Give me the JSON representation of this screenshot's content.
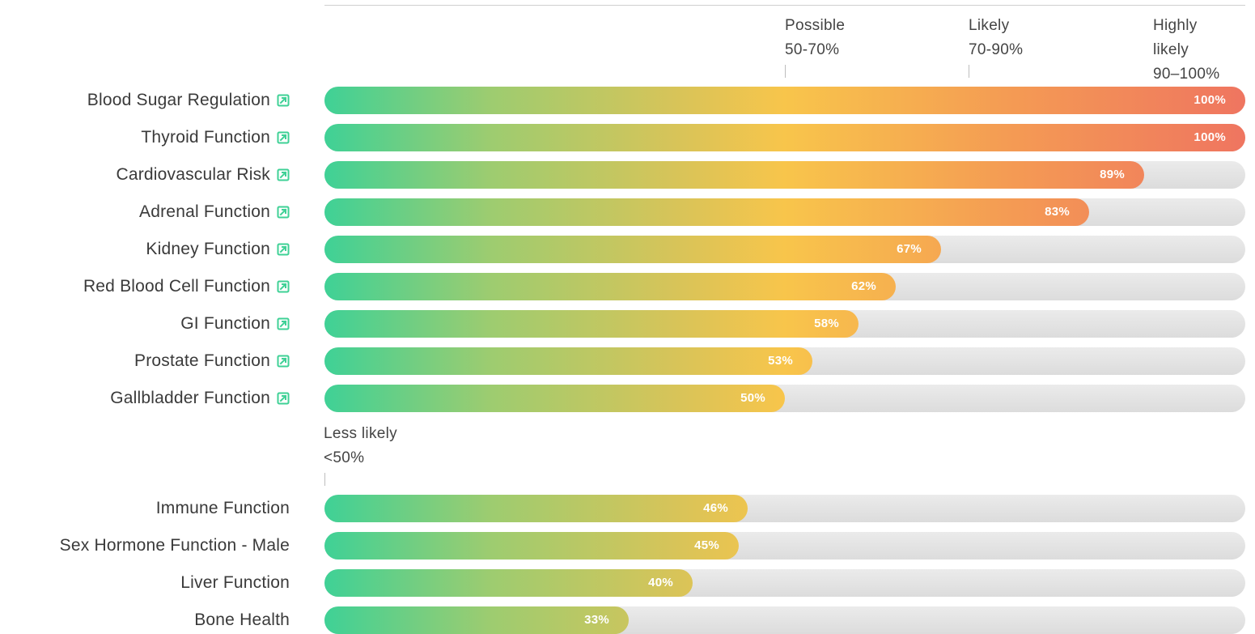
{
  "chart_data": {
    "type": "bar",
    "orientation": "horizontal",
    "xlim": [
      0,
      100
    ],
    "zones": [
      {
        "name": "Possible",
        "range": "50-70%",
        "threshold": 50
      },
      {
        "name": "Likely",
        "range": "70-90%",
        "threshold": 70
      },
      {
        "name": "Highly likely",
        "name_lines": [
          "Highly",
          "likely"
        ],
        "range": "90–100%",
        "threshold": 90
      }
    ],
    "below_zone": {
      "name": "Less likely",
      "range": "<50%",
      "threshold": 0
    },
    "groups": [
      {
        "bars": [
          {
            "label": "Blood Sugar Regulation",
            "value": 100,
            "value_label": "100%",
            "linked": true
          },
          {
            "label": "Thyroid Function",
            "value": 100,
            "value_label": "100%",
            "linked": true
          },
          {
            "label": "Cardiovascular Risk",
            "value": 89,
            "value_label": "89%",
            "linked": true
          },
          {
            "label": "Adrenal Function",
            "value": 83,
            "value_label": "83%",
            "linked": true
          },
          {
            "label": "Kidney Function",
            "value": 67,
            "value_label": "67%",
            "linked": true
          },
          {
            "label": "Red Blood Cell Function",
            "value": 62,
            "value_label": "62%",
            "linked": true
          },
          {
            "label": "GI Function",
            "value": 58,
            "value_label": "58%",
            "linked": true
          },
          {
            "label": "Prostate Function",
            "value": 53,
            "value_label": "53%",
            "linked": true
          },
          {
            "label": "Gallbladder Function",
            "value": 50,
            "value_label": "50%",
            "linked": true
          }
        ]
      },
      {
        "bars": [
          {
            "label": "Immune Function",
            "value": 46,
            "value_label": "46%",
            "linked": false
          },
          {
            "label": "Sex Hormone Function - Male",
            "value": 45,
            "value_label": "45%",
            "linked": false
          },
          {
            "label": "Liver Function",
            "value": 40,
            "value_label": "40%",
            "linked": false
          },
          {
            "label": "Bone Health",
            "value": 33,
            "value_label": "33%",
            "linked": false
          }
        ]
      }
    ],
    "colors": {
      "low": "#3fd196",
      "mid": "#f8c54b",
      "high": "#ef7560",
      "track": "#e3e3e3",
      "link_icon": "#3fd196"
    }
  }
}
